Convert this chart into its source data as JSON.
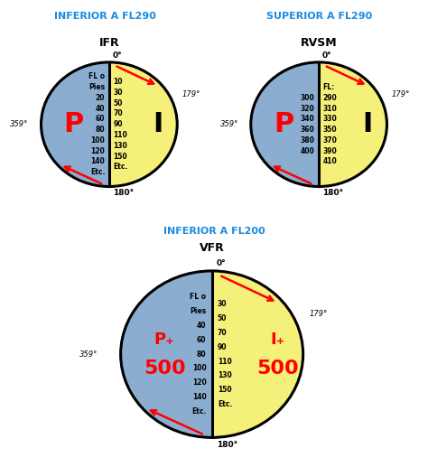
{
  "title1": "INFERIOR A FL290",
  "title2": "SUPERIOR A FL290",
  "title3": "INFERIOR A FL200",
  "label1": "IFR",
  "label2": "RVSM",
  "label3": "VFR",
  "blue_color": "#8BADD0",
  "yellow_color": "#F5F07A",
  "bg_color": "#FFFFFF",
  "title_color": "#1B8BE0",
  "red_color": "#EE1111",
  "black_color": "#000000",
  "ifr_left_lines": [
    "FL o",
    "Pies",
    "20",
    "40",
    "60",
    "80",
    "100",
    "120",
    "140",
    "Etc."
  ],
  "ifr_right_lines": [
    "10",
    "30",
    "50",
    "70",
    "90",
    "110",
    "130",
    "150",
    "Etc."
  ],
  "rvsm_left_lines": [
    "300",
    "320",
    "340",
    "360",
    "380",
    "400"
  ],
  "rvsm_right_lines": [
    "FL:",
    "290",
    "310",
    "330",
    "350",
    "370",
    "390",
    "410"
  ],
  "vfr_left_lines": [
    "FL o",
    "Pies",
    "40",
    "60",
    "80",
    "100",
    "120",
    "140",
    "Etc."
  ],
  "vfr_right_lines": [
    "30",
    "50",
    "70",
    "90",
    "110",
    "130",
    "150",
    "Etc."
  ]
}
